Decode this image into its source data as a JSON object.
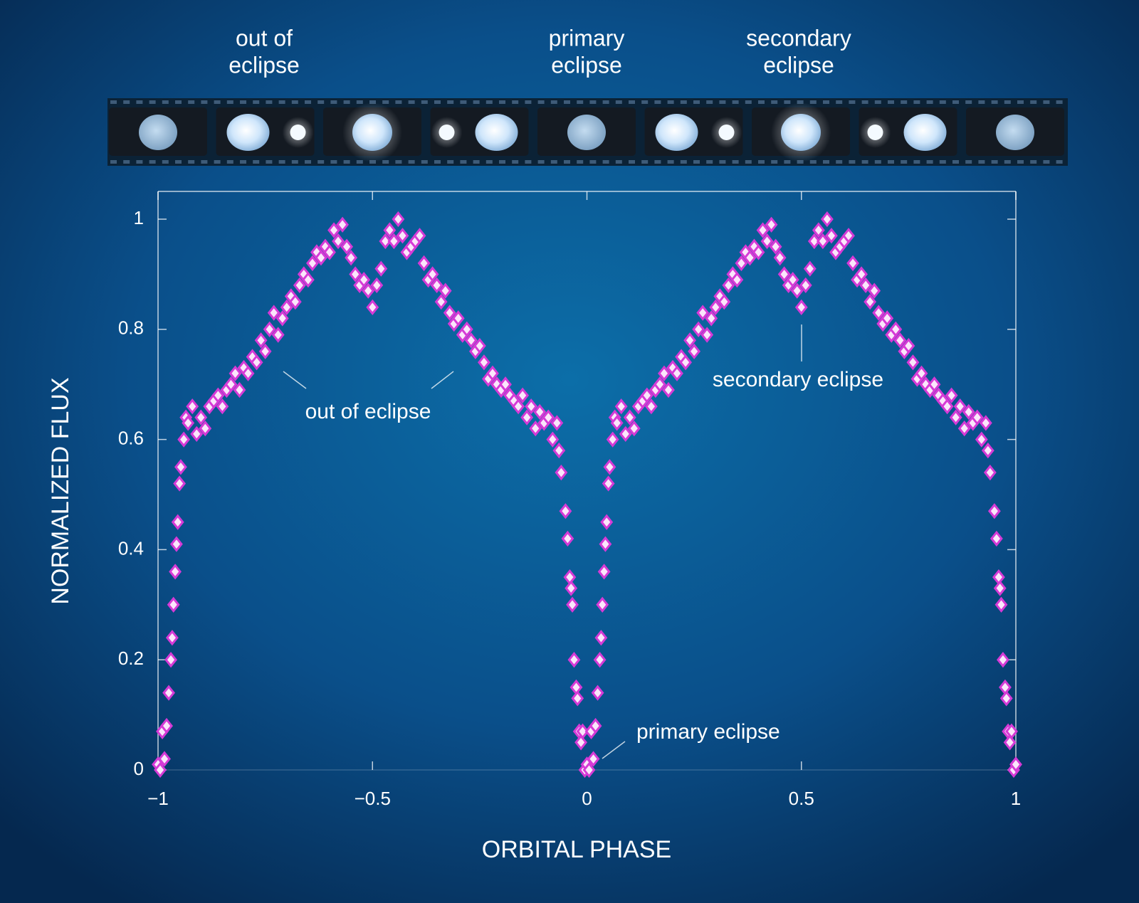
{
  "chart_data": {
    "type": "scatter",
    "frame_labels": [
      [
        "out of",
        "eclipse"
      ],
      [
        "primary",
        "eclipse"
      ],
      [
        "secondary",
        "eclipse"
      ]
    ],
    "annotations": [
      "out of eclipse",
      "secondary eclipse",
      "primary eclipse"
    ],
    "xlabel": "ORBITAL PHASE",
    "ylabel": "NORMALIZED FLUX",
    "color": "#d63ad6",
    "xlim": [
      -1,
      1
    ],
    "ylim": [
      0,
      1
    ],
    "xticks": [
      {
        "value": -1,
        "label": "−1"
      },
      {
        "value": -0.5,
        "label": "−0.5"
      },
      0,
      0.5,
      1
    ],
    "yticks": [
      0,
      0.2,
      0.4,
      0.6,
      0.8,
      1
    ],
    "x": [
      -1,
      -0.995,
      -0.99,
      -0.985,
      -0.98,
      -0.975,
      -0.97,
      -0.967,
      -0.964,
      -0.96,
      -0.957,
      -0.954,
      -0.95,
      -0.947,
      -0.94,
      -0.935,
      -0.93,
      -0.92,
      -0.91,
      -0.9,
      -0.89,
      -0.88,
      -0.87,
      -0.86,
      -0.85,
      -0.84,
      -0.83,
      -0.82,
      -0.81,
      -0.8,
      -0.79,
      -0.78,
      -0.77,
      -0.76,
      -0.75,
      -0.74,
      -0.73,
      -0.72,
      -0.71,
      -0.7,
      -0.69,
      -0.68,
      -0.67,
      -0.66,
      -0.65,
      -0.64,
      -0.63,
      -0.62,
      -0.61,
      -0.6,
      -0.59,
      -0.58,
      -0.57,
      -0.56,
      -0.55,
      -0.54,
      -0.53,
      -0.52,
      -0.51,
      -0.5,
      -0.49,
      -0.48,
      -0.47,
      -0.46,
      -0.45,
      -0.44,
      -0.43,
      -0.42,
      -0.41,
      -0.4,
      -0.39,
      -0.38,
      -0.37,
      -0.36,
      -0.35,
      -0.34,
      -0.33,
      -0.32,
      -0.31,
      -0.3,
      -0.29,
      -0.28,
      -0.27,
      -0.26,
      -0.25,
      -0.24,
      -0.23,
      -0.22,
      -0.21,
      -0.2,
      -0.19,
      -0.18,
      -0.17,
      -0.16,
      -0.15,
      -0.14,
      -0.13,
      -0.12,
      -0.11,
      -0.1,
      -0.09,
      -0.08,
      -0.07,
      -0.065,
      -0.06,
      -0.05,
      -0.045,
      -0.04,
      -0.037,
      -0.034,
      -0.03,
      -0.025,
      -0.022,
      -0.018,
      -0.014,
      -0.01,
      -0.005,
      0,
      0.005,
      0.01,
      0.015,
      0.02,
      0.025,
      0.03,
      0.033,
      0.036,
      0.04,
      0.043,
      0.046,
      0.05,
      0.053,
      0.06,
      0.065,
      0.07,
      0.08,
      0.09,
      0.1,
      0.11,
      0.12,
      0.13,
      0.14,
      0.15,
      0.16,
      0.17,
      0.18,
      0.19,
      0.2,
      0.21,
      0.22,
      0.23,
      0.24,
      0.25,
      0.26,
      0.27,
      0.28,
      0.29,
      0.3,
      0.31,
      0.32,
      0.33,
      0.34,
      0.35,
      0.36,
      0.37,
      0.38,
      0.39,
      0.4,
      0.41,
      0.42,
      0.43,
      0.44,
      0.45,
      0.46,
      0.47,
      0.48,
      0.49,
      0.5,
      0.51,
      0.52,
      0.53,
      0.54,
      0.55,
      0.56,
      0.57,
      0.58,
      0.59,
      0.6,
      0.61,
      0.62,
      0.63,
      0.64,
      0.65,
      0.66,
      0.67,
      0.68,
      0.69,
      0.7,
      0.71,
      0.72,
      0.73,
      0.74,
      0.75,
      0.76,
      0.77,
      0.78,
      0.79,
      0.8,
      0.81,
      0.82,
      0.83,
      0.84,
      0.85,
      0.86,
      0.87,
      0.88,
      0.89,
      0.9,
      0.91,
      0.92,
      0.93,
      0.935,
      0.94,
      0.95,
      0.955,
      0.96,
      0.963,
      0.966,
      0.97,
      0.975,
      0.978,
      0.982,
      0.986,
      0.99,
      0.995,
      1
    ],
    "values": [
      0.01,
      0.0,
      0.07,
      0.02,
      0.08,
      0.14,
      0.2,
      0.24,
      0.3,
      0.36,
      0.41,
      0.45,
      0.52,
      0.55,
      0.6,
      0.64,
      0.63,
      0.66,
      0.61,
      0.64,
      0.62,
      0.66,
      0.67,
      0.68,
      0.66,
      0.69,
      0.7,
      0.72,
      0.69,
      0.73,
      0.72,
      0.75,
      0.74,
      0.78,
      0.76,
      0.8,
      0.83,
      0.79,
      0.82,
      0.84,
      0.86,
      0.85,
      0.88,
      0.9,
      0.89,
      0.92,
      0.94,
      0.93,
      0.95,
      0.94,
      0.98,
      0.96,
      0.99,
      0.95,
      0.93,
      0.9,
      0.88,
      0.89,
      0.87,
      0.84,
      0.88,
      0.91,
      0.96,
      0.98,
      0.96,
      1.0,
      0.97,
      0.94,
      0.95,
      0.96,
      0.97,
      0.92,
      0.89,
      0.9,
      0.88,
      0.85,
      0.87,
      0.83,
      0.81,
      0.82,
      0.79,
      0.8,
      0.78,
      0.76,
      0.77,
      0.74,
      0.71,
      0.72,
      0.7,
      0.69,
      0.7,
      0.68,
      0.67,
      0.66,
      0.68,
      0.64,
      0.66,
      0.62,
      0.65,
      0.63,
      0.64,
      0.6,
      0.63,
      0.58,
      0.54,
      0.47,
      0.42,
      0.35,
      0.33,
      0.3,
      0.2,
      0.15,
      0.13,
      0.07,
      0.05,
      0.07,
      0.0,
      0.01,
      0.0,
      0.07,
      0.02,
      0.08,
      0.14,
      0.2,
      0.24,
      0.3,
      0.36,
      0.41,
      0.45,
      0.52,
      0.55,
      0.6,
      0.64,
      0.63,
      0.66,
      0.61,
      0.64,
      0.62,
      0.66,
      0.67,
      0.68,
      0.66,
      0.69,
      0.7,
      0.72,
      0.69,
      0.73,
      0.72,
      0.75,
      0.74,
      0.78,
      0.76,
      0.8,
      0.83,
      0.79,
      0.82,
      0.84,
      0.86,
      0.85,
      0.88,
      0.9,
      0.89,
      0.92,
      0.94,
      0.93,
      0.95,
      0.94,
      0.98,
      0.96,
      0.99,
      0.95,
      0.93,
      0.9,
      0.88,
      0.89,
      0.87,
      0.84,
      0.88,
      0.91,
      0.96,
      0.98,
      0.96,
      1.0,
      0.97,
      0.94,
      0.95,
      0.96,
      0.97,
      0.92,
      0.89,
      0.9,
      0.88,
      0.85,
      0.87,
      0.83,
      0.81,
      0.82,
      0.79,
      0.8,
      0.78,
      0.76,
      0.77,
      0.74,
      0.71,
      0.72,
      0.7,
      0.69,
      0.7,
      0.68,
      0.67,
      0.66,
      0.68,
      0.64,
      0.66,
      0.62,
      0.65,
      0.63,
      0.64,
      0.6,
      0.63,
      0.58,
      0.54,
      0.47,
      0.42,
      0.35,
      0.33,
      0.3,
      0.2,
      0.15,
      0.13,
      0.07,
      0.05,
      0.07,
      0.0,
      0.01
    ]
  }
}
